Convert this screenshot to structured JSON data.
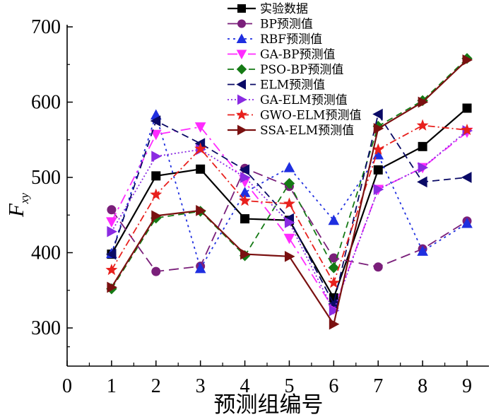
{
  "chart_data": {
    "type": "line",
    "xlabel": "预测组编号",
    "ylabel_main": "F",
    "ylabel_sub": "xy",
    "xlim": [
      0,
      9.5
    ],
    "ylim": [
      250,
      700
    ],
    "x_ticks": [
      0,
      1,
      2,
      3,
      4,
      5,
      6,
      7,
      8,
      9
    ],
    "y_ticks": [
      300,
      400,
      500,
      600,
      700
    ],
    "legend_position": "top-center",
    "x": [
      1,
      2,
      3,
      4,
      5,
      6,
      7,
      8,
      9
    ],
    "series": [
      {
        "name": "实验数据",
        "color": "#000000",
        "dash": "",
        "marker": "square",
        "width": 2.2,
        "values": [
          398,
          502,
          511,
          445,
          443,
          340,
          510,
          541,
          592
        ]
      },
      {
        "name": "BP预测值",
        "color": "#7a1f7a",
        "dash": "14,7",
        "marker": "circle",
        "width": 1.8,
        "values": [
          457,
          375,
          382,
          512,
          488,
          393,
          381,
          405,
          442
        ]
      },
      {
        "name": "RBF预测值",
        "color": "#1f2fe0",
        "dash": "3,5",
        "marker": "triangle-up",
        "width": 1.8,
        "values": [
          399,
          583,
          379,
          480,
          513,
          443,
          530,
          402,
          439
        ]
      },
      {
        "name": "GA-BP预测值",
        "color": "#ff2bff",
        "dash": "14,6,3,6",
        "marker": "triangle-down",
        "width": 1.8,
        "values": [
          441,
          557,
          567,
          494,
          419,
          325,
          484,
          513,
          560
        ]
      },
      {
        "name": "PSO-BP预测值",
        "color": "#157a15",
        "dash": "9,6",
        "marker": "diamond",
        "width": 1.8,
        "values": [
          352,
          446,
          455,
          396,
          492,
          380,
          568,
          602,
          658
        ]
      },
      {
        "name": "ELM预测值",
        "color": "#0a0a66",
        "dash": "10,6",
        "marker": "triangle-left",
        "width": 1.8,
        "values": [
          398,
          575,
          545,
          510,
          445,
          332,
          584,
          494,
          500
        ]
      },
      {
        "name": "GA-ELM预测值",
        "color": "#8a2be2",
        "dash": "2,3",
        "marker": "triangle-right",
        "width": 1.8,
        "values": [
          428,
          528,
          537,
          500,
          440,
          323,
          484,
          513,
          562
        ]
      },
      {
        "name": "GWO-ELM预测值",
        "color": "#e8201d",
        "dash": "10,4,2,4",
        "marker": "star",
        "width": 1.8,
        "values": [
          377,
          477,
          538,
          469,
          465,
          360,
          537,
          569,
          563
        ]
      },
      {
        "name": "SSA-ELM预测值",
        "color": "#7a1010",
        "dash": "",
        "marker": "triangle-right",
        "width": 2.2,
        "values": [
          354,
          449,
          456,
          398,
          395,
          305,
          565,
          600,
          656
        ]
      }
    ]
  }
}
